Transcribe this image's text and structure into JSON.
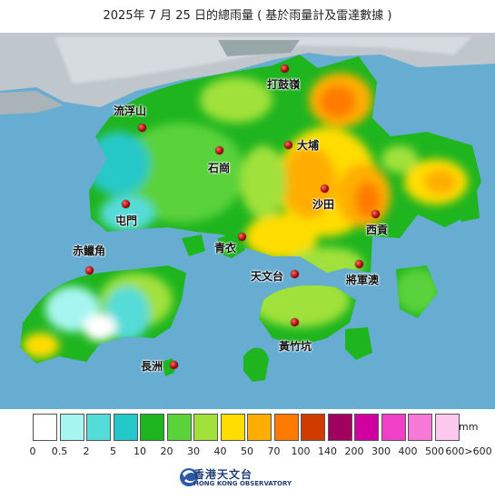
{
  "title": "2025年 7 月 25 日的總雨量 ( 基於雨量計及雷達數據 )",
  "places": [
    {
      "id": "tai-mo-shan-peak",
      "name": "打鼓嶺"
    },
    {
      "id": "lau-fau-shan",
      "name": "流浮山"
    },
    {
      "id": "tai-po",
      "name": "大埔"
    },
    {
      "id": "shek-kong",
      "name": "石崗"
    },
    {
      "id": "sha-tin",
      "name": "沙田"
    },
    {
      "id": "tuen-mun",
      "name": "屯門"
    },
    {
      "id": "sai-kung",
      "name": "西貢"
    },
    {
      "id": "chek-lap-kok",
      "name": "赤鱲角"
    },
    {
      "id": "tsing-yi",
      "name": "青衣"
    },
    {
      "id": "tin-shui-observatory",
      "name": "天文台"
    },
    {
      "id": "tseung-kwan-o",
      "name": "將軍澳"
    },
    {
      "id": "wong-chuk-hang",
      "name": "黃竹坑"
    },
    {
      "id": "cheung-chau",
      "name": "長洲"
    }
  ],
  "legend": {
    "unit": "mm",
    "colors": [
      "#ffffff",
      "#a6f5f0",
      "#54dcd8",
      "#25c8c8",
      "#1fb51f",
      "#5ad23a",
      "#a0e13a",
      "#ffdd00",
      "#ffae00",
      "#ff7a00",
      "#d03c00",
      "#a00060",
      "#d000a0",
      "#f040c8",
      "#f878d8",
      "#fcc8ee"
    ],
    "ticks": [
      "0",
      "0.5",
      "2",
      "5",
      "10",
      "20",
      "30",
      "40",
      "50",
      "70",
      "100",
      "140",
      "200",
      "300",
      "400",
      "500",
      "600>600"
    ]
  },
  "logo": {
    "zh": "香港天文台",
    "en": "HONG KONG OBSERVATORY"
  }
}
